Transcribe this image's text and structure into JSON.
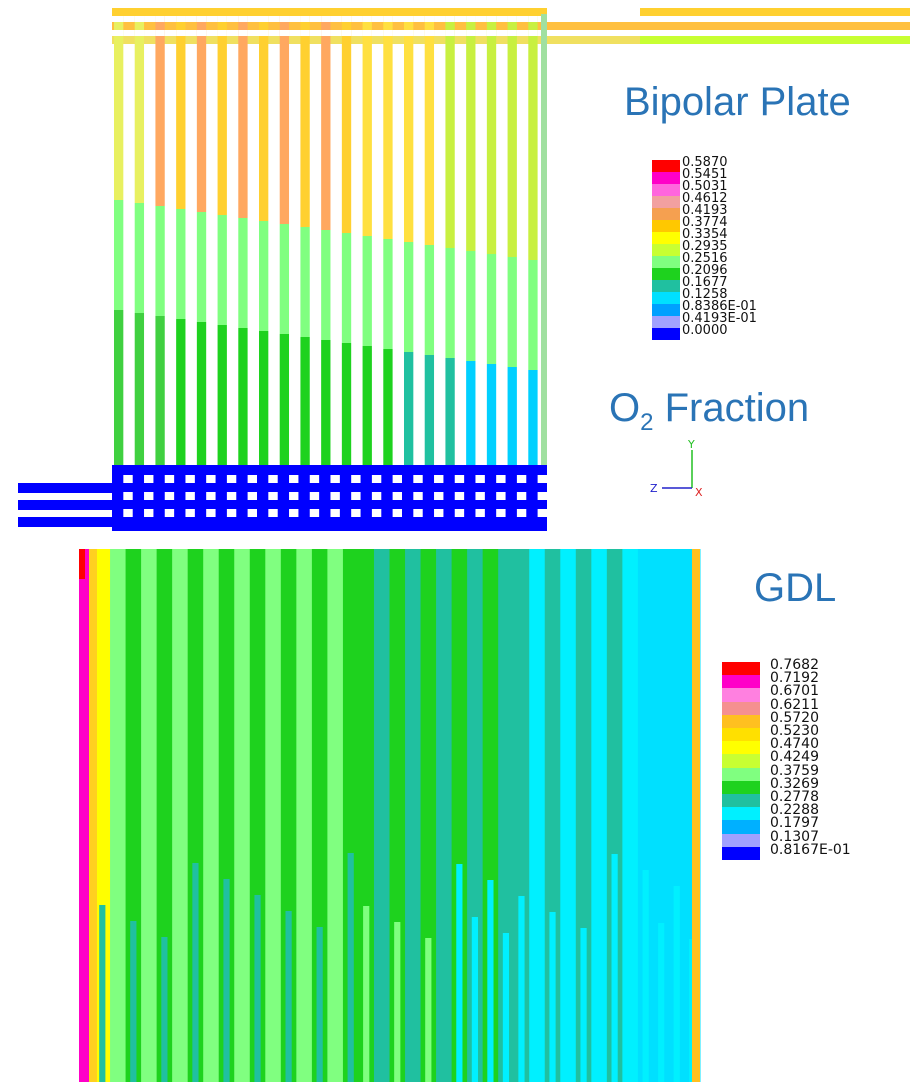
{
  "titles": {
    "bipolar_plate": "Bipolar Plate",
    "o2_main": "O",
    "o2_sub": "2",
    "o2_rest": " Fraction",
    "gdl": "GDL"
  },
  "axes_triad": {
    "y": "Y",
    "z": "Z",
    "x": "X"
  },
  "legend_top": {
    "labels": [
      "0.5870",
      "0.5451",
      "0.5031",
      "0.4612",
      "0.4193",
      "0.3774",
      "0.3354",
      "0.2935",
      "0.2516",
      "0.2096",
      "0.1677",
      "0.1258",
      "0.8386E-01",
      "0.4193E-01",
      "0.0000"
    ],
    "colors": [
      "#ff0000",
      "#ff00c8",
      "#ff66dd",
      "#f2a0a0",
      "#f5a050",
      "#ffc800",
      "#ffff00",
      "#c8ff32",
      "#80ff80",
      "#1ed21e",
      "#20c0a0",
      "#00e0ff",
      "#00a0ff",
      "#a0a0ff",
      "#0000ff"
    ]
  },
  "legend_bottom": {
    "labels": [
      "0.7682",
      "0.7192",
      "0.6701",
      "0.6211",
      "0.5720",
      "0.5230",
      "0.4740",
      "0.4249",
      "0.3759",
      "0.3269",
      "0.2778",
      "0.2288",
      "0.1797",
      "0.1307",
      "0.8167E-01"
    ],
    "colors": [
      "#ff0000",
      "#ff00c8",
      "#ff80e0",
      "#f59090",
      "#ffc020",
      "#ffe000",
      "#ffff00",
      "#c8ff32",
      "#80ff80",
      "#1ed21e",
      "#20c0a0",
      "#00f0ff",
      "#00b0ff",
      "#a0a0ff",
      "#0000ff"
    ]
  }
}
